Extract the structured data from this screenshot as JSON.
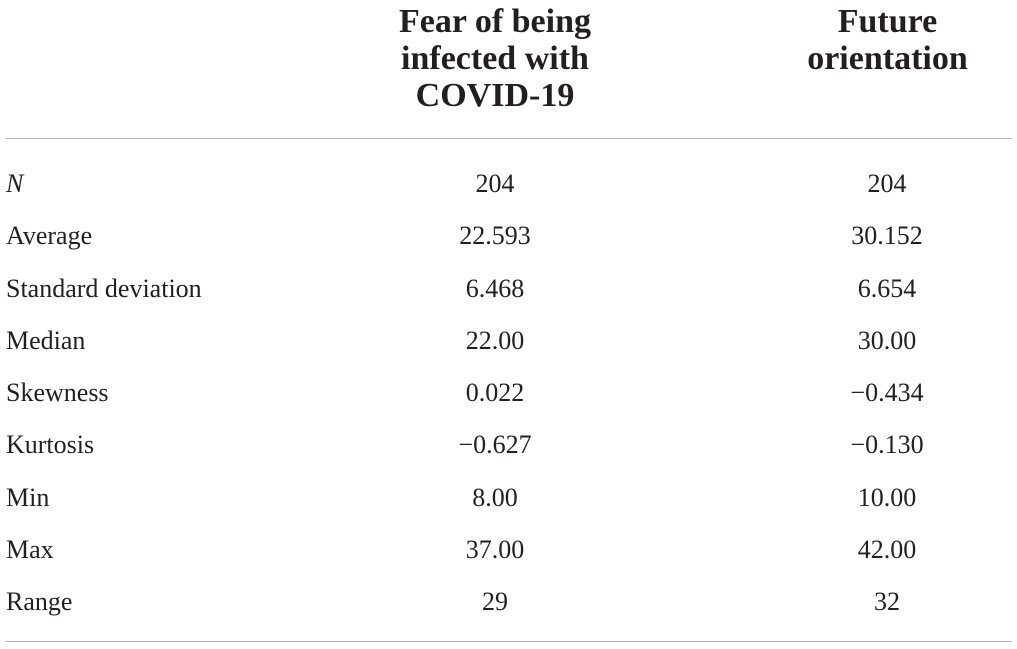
{
  "table": {
    "columns": [
      "Fear of being\ninfected with\nCOVID-19",
      "Future\norientation"
    ],
    "rows": [
      {
        "label": "N",
        "values": [
          "204",
          "204"
        ]
      },
      {
        "label": "Average",
        "values": [
          "22.593",
          "30.152"
        ]
      },
      {
        "label": "Standard deviation",
        "values": [
          "6.468",
          "6.654"
        ]
      },
      {
        "label": "Median",
        "values": [
          "22.00",
          "30.00"
        ]
      },
      {
        "label": "Skewness",
        "values": [
          "0.022",
          "−0.434"
        ]
      },
      {
        "label": "Kurtosis",
        "values": [
          "−0.627",
          "−0.130"
        ]
      },
      {
        "label": "Min",
        "values": [
          "8.00",
          "10.00"
        ]
      },
      {
        "label": "Max",
        "values": [
          "37.00",
          "42.00"
        ]
      },
      {
        "label": "Range",
        "values": [
          "29",
          "32"
        ]
      }
    ]
  }
}
